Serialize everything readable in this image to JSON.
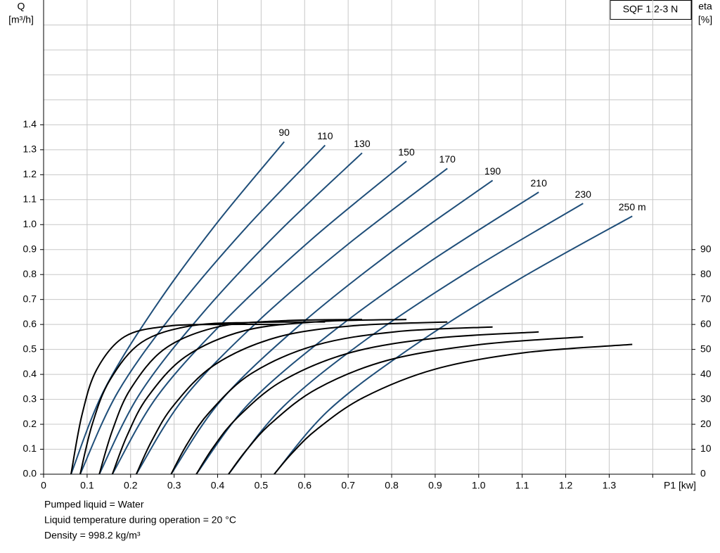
{
  "chart_data": {
    "type": "line",
    "title": "SQF 1.2-3 N",
    "ylabel": [
      "Q",
      "[m³/h]"
    ],
    "y2label": [
      "eta",
      "[%]"
    ],
    "xlabel": "P1 [kw]",
    "notes": [
      "Pumped liquid = Water",
      "Liquid temperature during operation = 20 °C",
      "Density = 998.2 kg/m³"
    ],
    "xlim": [
      0,
      1.49
    ],
    "ylim": [
      0,
      1.9
    ],
    "y2lim": [
      0,
      190
    ],
    "grid": true,
    "xticks": [
      0,
      0.1,
      0.2,
      0.3,
      0.4,
      0.5,
      0.6,
      0.7,
      0.8,
      0.9,
      {
        "value": 1,
        "label": "1.0"
      },
      1.1,
      1.2,
      1.3,
      {
        "value": 1.4,
        "label": null
      }
    ],
    "yticks": [
      {
        "value": 0,
        "label": "0.0"
      },
      0.1,
      0.2,
      0.3,
      0.4,
      0.5,
      0.6,
      0.7,
      0.8,
      0.9,
      {
        "value": 1,
        "label": "1.0"
      },
      1.1,
      1.2,
      1.3,
      1.4,
      {
        "value": 1.5,
        "label": null
      },
      {
        "value": 1.6,
        "label": null
      },
      {
        "value": 1.7,
        "label": null
      },
      {
        "value": 1.8,
        "label": null
      }
    ],
    "y2ticks": [
      0,
      10,
      20,
      30,
      40,
      50,
      60,
      70,
      80,
      90
    ],
    "series": [
      {
        "name": "90",
        "color": "#1f4e79",
        "x": [
          0.063,
          0.138,
          0.255,
          0.395,
          0.553
        ],
        "values": [
          0,
          0.333,
          0.666,
          0.999,
          1.332
        ]
      },
      {
        "name": "110",
        "color": "#1f4e79",
        "x": [
          0.084,
          0.171,
          0.305,
          0.466,
          0.647
        ],
        "values": [
          0,
          0.33,
          0.659,
          0.989,
          1.318
        ]
      },
      {
        "name": "130",
        "color": "#1f4e79",
        "x": [
          0.128,
          0.221,
          0.365,
          0.537,
          0.732
        ],
        "values": [
          0,
          0.322,
          0.644,
          0.965,
          1.287
        ]
      },
      {
        "name": "150",
        "color": "#1f4e79",
        "x": [
          0.158,
          0.262,
          0.423,
          0.616,
          0.834
        ],
        "values": [
          0,
          0.314,
          0.627,
          0.941,
          1.254
        ]
      },
      {
        "name": "170",
        "color": "#1f4e79",
        "x": [
          0.213,
          0.323,
          0.493,
          0.698,
          0.928
        ],
        "values": [
          0,
          0.306,
          0.613,
          0.919,
          1.225
        ]
      },
      {
        "name": "190",
        "color": "#1f4e79",
        "x": [
          0.293,
          0.407,
          0.583,
          0.794,
          1.032
        ],
        "values": [
          0,
          0.294,
          0.589,
          0.883,
          1.177
        ]
      },
      {
        "name": "210",
        "color": "#1f4e79",
        "x": [
          0.351,
          0.472,
          0.66,
          0.885,
          1.138
        ],
        "values": [
          0,
          0.283,
          0.565,
          0.848,
          1.13
        ]
      },
      {
        "name": "230",
        "color": "#1f4e79",
        "x": [
          0.425,
          0.551,
          0.744,
          0.978,
          1.24
        ],
        "values": [
          0,
          0.271,
          0.543,
          0.814,
          1.085
        ]
      },
      {
        "name": "250 m",
        "color": "#1f4e79",
        "x": [
          0.53,
          0.657,
          0.853,
          1.088,
          1.353
        ],
        "values": [
          0,
          0.259,
          0.517,
          0.776,
          1.034
        ]
      },
      {
        "axis": "y2",
        "color": "#000000",
        "x": [
          0.063,
          0.088,
          0.122,
          0.186,
          0.284,
          0.406,
          0.553
        ],
        "values": [
          0,
          23.6,
          41.9,
          55.1,
          59.3,
          60,
          60
        ]
      },
      {
        "axis": "y2",
        "color": "#000000",
        "x": [
          0.084,
          0.112,
          0.152,
          0.225,
          0.337,
          0.478,
          0.647
        ],
        "values": [
          0,
          20.1,
          37.6,
          52.8,
          59.4,
          60.8,
          61
        ]
      },
      {
        "axis": "y2",
        "color": "#000000",
        "x": [
          0.128,
          0.158,
          0.2,
          0.279,
          0.4,
          0.551,
          0.732
        ],
        "values": [
          0,
          17.5,
          34.2,
          50.3,
          59,
          61.5,
          62
        ]
      },
      {
        "axis": "y2",
        "color": "#000000",
        "x": [
          0.158,
          0.192,
          0.239,
          0.327,
          0.462,
          0.631,
          0.834
        ],
        "values": [
          0,
          15.5,
          30.9,
          47.2,
          57.5,
          61.1,
          62
        ]
      },
      {
        "axis": "y2",
        "color": "#000000",
        "x": [
          0.213,
          0.249,
          0.299,
          0.392,
          0.535,
          0.714,
          0.928
        ],
        "values": [
          0,
          13.5,
          27.6,
          43.7,
          54.8,
          59.5,
          61
        ]
      },
      {
        "axis": "y2",
        "color": "#000000",
        "x": [
          0.293,
          0.33,
          0.382,
          0.478,
          0.626,
          0.81,
          1.032
        ],
        "values": [
          0,
          12.1,
          25,
          40.4,
          51.7,
          57.1,
          59
        ]
      },
      {
        "axis": "y2",
        "color": "#000000",
        "x": [
          0.351,
          0.39,
          0.445,
          0.548,
          0.705,
          0.902,
          1.138
        ],
        "values": [
          0,
          10.8,
          22.6,
          37.3,
          48.7,
          54.5,
          57
        ]
      },
      {
        "axis": "y2",
        "color": "#000000",
        "x": [
          0.425,
          0.466,
          0.523,
          0.629,
          0.792,
          1.006,
          1.24
        ],
        "values": [
          0,
          9.6,
          20.4,
          34.3,
          45.7,
          52,
          55
        ]
      },
      {
        "axis": "y2",
        "color": "#000000",
        "x": [
          0.53,
          0.571,
          0.629,
          0.736,
          0.9,
          1.106,
          1.353
        ],
        "values": [
          0,
          8.4,
          18.1,
          30.8,
          42.1,
          48.7,
          52
        ]
      }
    ]
  }
}
